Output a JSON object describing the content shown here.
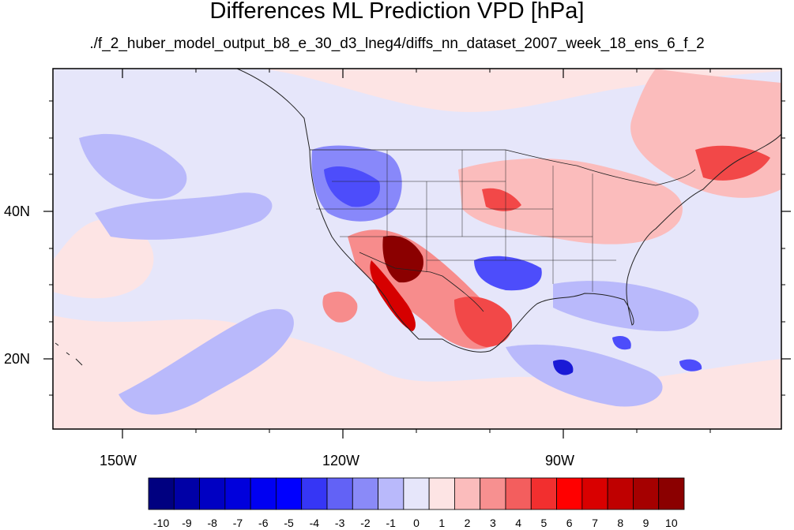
{
  "title": "Differences ML Prediction VPD [hPa]",
  "subtitle": "./f_2_huber_model_output_b8_e_30_d3_lneg4/diffs_nn_dataset_2007_week_18_ens_6_f_2",
  "map": {
    "lon_ticks": [
      "150W",
      "120W",
      "90W"
    ],
    "lat_ticks": [
      "40N",
      "20N"
    ],
    "colors": {
      "background": "#e6e6fa",
      "ocean_pink": "#fde4e4",
      "blue_light": "#b9b9fb",
      "blue_mid": "#8888fa",
      "blue": "#4d4dfb",
      "blue_dark": "#1a1ad6",
      "red_light": "#fbbcbc",
      "red_mid": "#f78c8c",
      "red": "#f24848",
      "red_dark": "#d60000",
      "red_deep": "#8b0000"
    }
  },
  "colorbar": {
    "labels": [
      "-10",
      "-9",
      "-8",
      "-7",
      "-6",
      "-5",
      "-4",
      "-3",
      "-2",
      "-1",
      "0",
      "1",
      "2",
      "3",
      "4",
      "5",
      "6",
      "7",
      "8",
      "9",
      "10"
    ],
    "colors": [
      "#000080",
      "#0000a6",
      "#0000c3",
      "#0000dc",
      "#0000f2",
      "#0000ff",
      "#3636f5",
      "#6262f6",
      "#8a8af8",
      "#b9b9fb",
      "#e6e6fa",
      "#fde4e4",
      "#fbbcbc",
      "#f79090",
      "#f35e5e",
      "#f22f2f",
      "#ff0000",
      "#d90000",
      "#bf0000",
      "#a50000",
      "#8b0000"
    ]
  }
}
